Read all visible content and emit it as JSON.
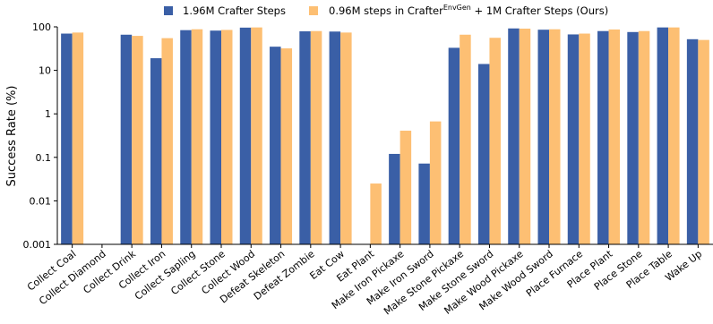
{
  "chart_data": {
    "type": "bar",
    "ylabel": "Success Rate (%)",
    "yscale": "log",
    "ylim": [
      0.001,
      100
    ],
    "yticks": [
      "0.001",
      "0.01",
      "0.1",
      "1",
      "10",
      "100"
    ],
    "legend_position": "top",
    "categories": [
      "Collect Coal",
      "Collect Diamond",
      "Collect Drink",
      "Collect Iron",
      "Collect Sapling",
      "Collect Stone",
      "Collect Wood",
      "Defeat Skeleton",
      "Defeat Zombie",
      "Eat Cow",
      "Eat Plant",
      "Make Iron Pickaxe",
      "Make Iron Sword",
      "Make Stone Pickaxe",
      "Make Stone Sword",
      "Make Wood Pickaxe",
      "Make Wood Sword",
      "Place Furnace",
      "Place Plant",
      "Place Stone",
      "Place Table",
      "Wake Up"
    ],
    "series": [
      {
        "name": "1.96M Crafter Steps",
        "color": "#3a5fa6",
        "values": [
          70,
          null,
          66,
          19,
          84,
          82,
          96,
          35,
          79,
          78,
          null,
          0.12,
          0.072,
          33,
          14,
          92,
          86,
          67,
          80,
          76,
          97,
          52
        ]
      },
      {
        "name_prefix": "0.96M steps in Crafter",
        "name_superscript": "EnvGen",
        "name_suffix": " + 1M Crafter Steps (Ours)",
        "color": "#fdbf73",
        "values": [
          74,
          null,
          62,
          55,
          88,
          85,
          97,
          32,
          80,
          74,
          0.025,
          0.41,
          0.67,
          66,
          56,
          91,
          88,
          70,
          87,
          80,
          97,
          50
        ]
      }
    ]
  }
}
